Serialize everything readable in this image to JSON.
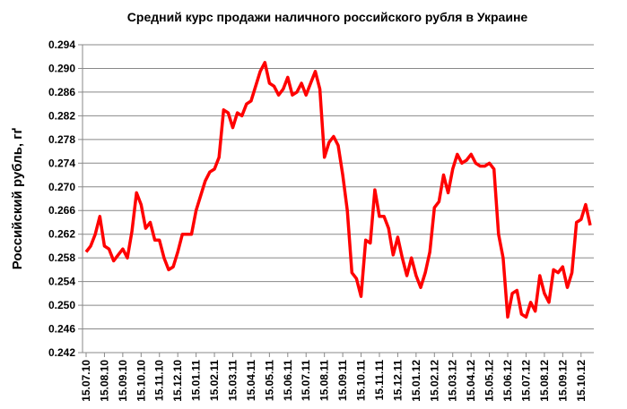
{
  "chart_data": {
    "type": "line",
    "title": "Средний курс продажи наличного российского рубля в Украине",
    "y_label": "Российский рубль, гґ",
    "categories": [
      "15.07.10",
      null,
      null,
      null,
      "15.08.10",
      null,
      null,
      null,
      "15.09.10",
      null,
      null,
      null,
      "15.10.10",
      null,
      null,
      null,
      "15.11.10",
      null,
      null,
      null,
      "15.12.10",
      null,
      null,
      null,
      "15.01.11",
      null,
      null,
      null,
      "15.02.11",
      null,
      null,
      null,
      "15.03.11",
      null,
      null,
      null,
      "15.04.11",
      null,
      null,
      null,
      "15.05.11",
      null,
      null,
      null,
      "15.06.11",
      null,
      null,
      null,
      "15.07.11",
      null,
      null,
      null,
      "15.08.11",
      null,
      null,
      null,
      "15.09.11",
      null,
      null,
      null,
      "15.10.11",
      null,
      null,
      null,
      "15.11.11",
      null,
      null,
      null,
      "15.12.11",
      null,
      null,
      null,
      "15.01.12",
      null,
      null,
      null,
      "15.02.12",
      null,
      null,
      null,
      "15.03.12",
      null,
      null,
      null,
      "15.04.12",
      null,
      null,
      null,
      "15.05.12",
      null,
      null,
      null,
      "15.06.12",
      null,
      null,
      null,
      "15.07.12",
      null,
      null,
      null,
      "15.08.12",
      null,
      null,
      null,
      "15.09.12",
      null,
      null,
      null,
      "15.10.12",
      null,
      null
    ],
    "series": [
      {
        "name": "Российский рубль",
        "color": "#ff0000",
        "values": [
          0.259,
          0.26,
          0.262,
          0.265,
          0.26,
          0.2595,
          0.2575,
          0.2585,
          0.2595,
          0.258,
          0.2625,
          0.269,
          0.267,
          0.263,
          0.264,
          0.261,
          0.261,
          0.258,
          0.256,
          0.2565,
          0.259,
          0.262,
          0.262,
          0.262,
          0.266,
          0.2685,
          0.271,
          0.2725,
          0.273,
          0.275,
          0.283,
          0.2825,
          0.28,
          0.2825,
          0.282,
          0.284,
          0.2845,
          0.287,
          0.2895,
          0.291,
          0.2875,
          0.287,
          0.2855,
          0.2865,
          0.2885,
          0.2855,
          0.286,
          0.2875,
          0.2855,
          0.2875,
          0.2895,
          0.2865,
          0.275,
          0.2775,
          0.2785,
          0.277,
          0.272,
          0.266,
          0.2555,
          0.2545,
          0.2515,
          0.261,
          0.2605,
          0.2695,
          0.265,
          0.265,
          0.263,
          0.2585,
          0.2615,
          0.258,
          0.255,
          0.258,
          0.255,
          0.253,
          0.2555,
          0.259,
          0.2665,
          0.2675,
          0.272,
          0.269,
          0.273,
          0.2755,
          0.274,
          0.2745,
          0.2755,
          0.274,
          0.2735,
          0.2735,
          0.274,
          0.273,
          0.262,
          0.258,
          0.248,
          0.252,
          0.2525,
          0.2485,
          0.248,
          0.2505,
          0.249,
          0.255,
          0.252,
          0.2505,
          0.256,
          0.2555,
          0.2565,
          0.253,
          0.2555,
          0.264,
          0.2645,
          0.267,
          0.2635
        ]
      }
    ],
    "ylim": [
      0.242,
      0.294
    ],
    "yticks": [
      0.242,
      0.246,
      {
        "value": 0.25,
        "label": "0.250"
      },
      0.254,
      0.258,
      0.262,
      0.266,
      {
        "value": 0.27,
        "label": "0.270"
      },
      0.274,
      0.278,
      0.282,
      0.286,
      {
        "value": 0.29,
        "label": "0.290"
      },
      0.294
    ],
    "grid": true
  }
}
